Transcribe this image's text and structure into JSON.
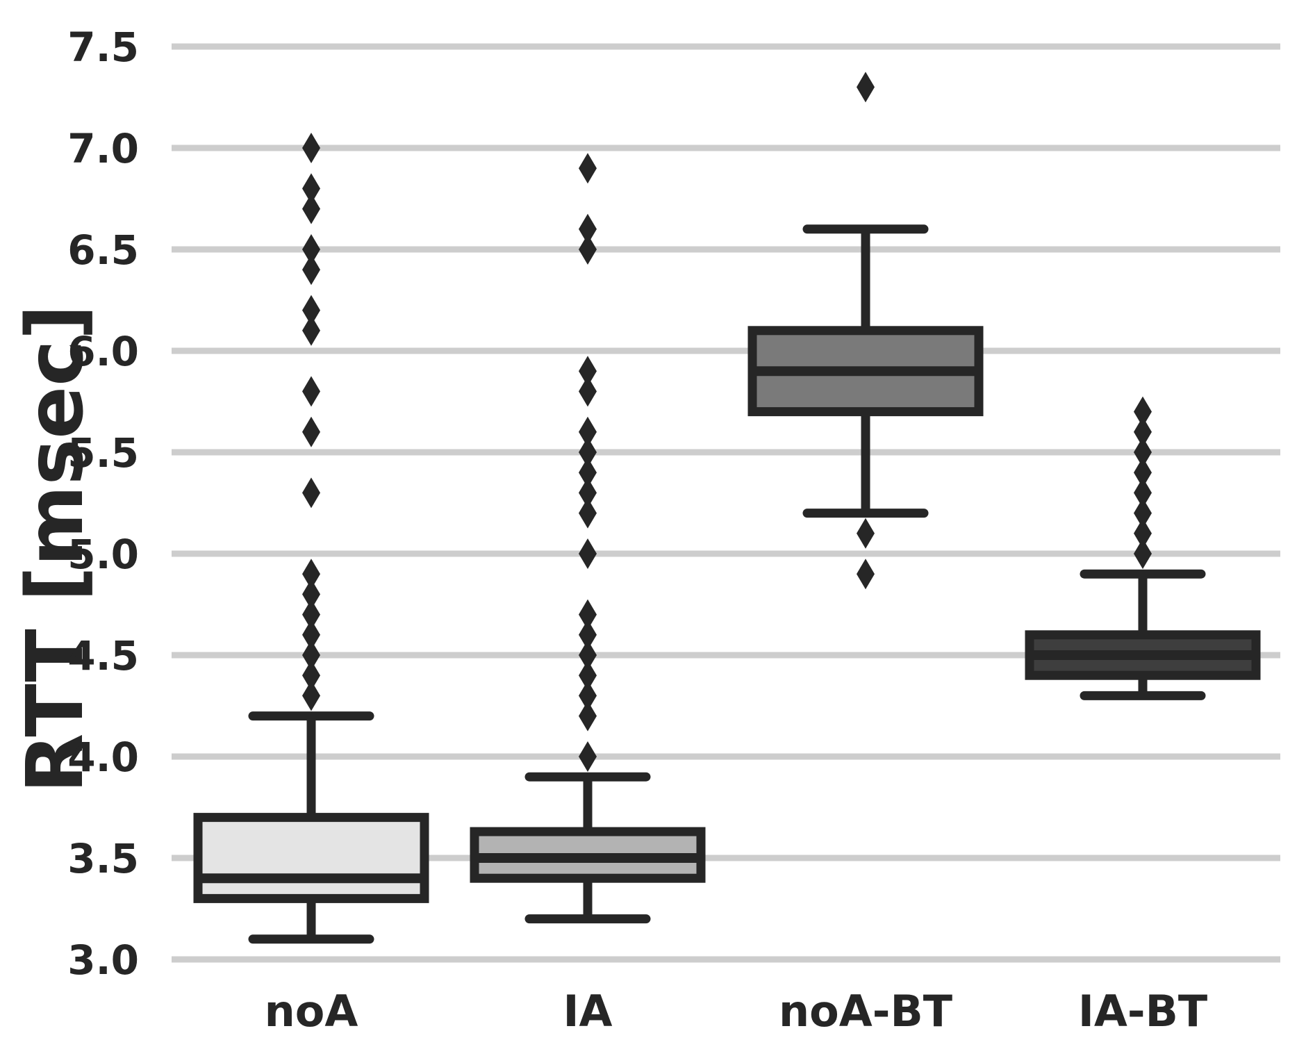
{
  "chart_data": {
    "type": "boxplot",
    "title": "",
    "ylabel": "RTT [msec]",
    "xlabel": "",
    "ylim": [
      3.0,
      7.5
    ],
    "ytick_step": 0.5,
    "yticks": [
      "3.0",
      "3.5",
      "4.0",
      "4.5",
      "5.0",
      "5.5",
      "6.0",
      "6.5",
      "7.0",
      "7.5"
    ],
    "grid": "horizontal-only",
    "legend_position": "none",
    "outlier_marker": "filled-diamond",
    "categories": [
      "noA",
      "IA",
      "noA-BT",
      "IA-BT"
    ],
    "series": [
      {
        "name": "noA",
        "fill": "#e4e4e4",
        "whisker_low": 3.1,
        "q1": 3.3,
        "median": 3.4,
        "q3": 3.7,
        "whisker_high": 4.2,
        "outliers": [
          4.3,
          4.4,
          4.5,
          4.6,
          4.7,
          4.8,
          4.9,
          5.3,
          5.6,
          5.8,
          6.1,
          6.2,
          6.4,
          6.5,
          6.7,
          6.8,
          7.0
        ]
      },
      {
        "name": "IA",
        "fill": "#b3b3b3",
        "whisker_low": 3.2,
        "q1": 3.4,
        "median": 3.5,
        "q3": 3.63,
        "whisker_high": 3.9,
        "outliers": [
          4.0,
          4.2,
          4.3,
          4.4,
          4.5,
          4.6,
          4.7,
          5.0,
          5.2,
          5.3,
          5.4,
          5.5,
          5.6,
          5.8,
          5.9,
          6.5,
          6.6,
          6.9
        ]
      },
      {
        "name": "noA-BT",
        "fill": "#7a7a7a",
        "whisker_low": 5.2,
        "q1": 5.7,
        "median": 5.9,
        "q3": 6.1,
        "whisker_high": 6.6,
        "outliers": [
          4.9,
          5.1,
          7.3
        ]
      },
      {
        "name": "IA-BT",
        "fill": "#3e3e3e",
        "whisker_low": 4.3,
        "q1": 4.4,
        "median": 4.5,
        "q3": 4.6,
        "whisker_high": 4.9,
        "outliers": [
          5.0,
          5.1,
          5.2,
          5.3,
          5.4,
          5.5,
          5.6,
          5.7
        ]
      }
    ],
    "colors": {
      "line": "#262626",
      "grid": "#cdcdcd",
      "text": "#262626",
      "background": "#ffffff"
    }
  }
}
